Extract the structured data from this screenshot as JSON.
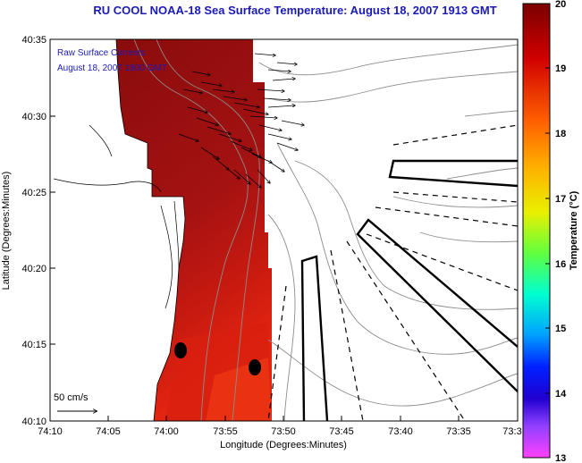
{
  "title": "RU COOL  NOAA-18  Sea Surface Temperature:  August 18, 2007 1913 GMT",
  "inset": {
    "line1": "Raw Surface Currents",
    "line2": "August 18, 2007 1800 GMT"
  },
  "scale_label": "50 cm/s",
  "xlabel": "Longitude (Degrees:Minutes)",
  "ylabel": "Latitude (Degrees:Minutes)",
  "colorbar": {
    "label": "Temperature (°C)",
    "ticks": [
      "20",
      "19",
      "18",
      "17",
      "16",
      "15",
      "14",
      "13"
    ],
    "min": 13,
    "max": 20
  },
  "x_ticks": [
    "74:10",
    "74:05",
    "74:00",
    "73:55",
    "73:50",
    "73:45",
    "73:40",
    "73:35",
    "73:3"
  ],
  "y_ticks": [
    "40:35",
    "40:30",
    "40:25",
    "40:20",
    "40:15",
    "40:10"
  ],
  "colors": {
    "sst_warm": "#9b1010",
    "sst_hot": "#e81e10",
    "title_blue": "#1a1ab4"
  }
}
